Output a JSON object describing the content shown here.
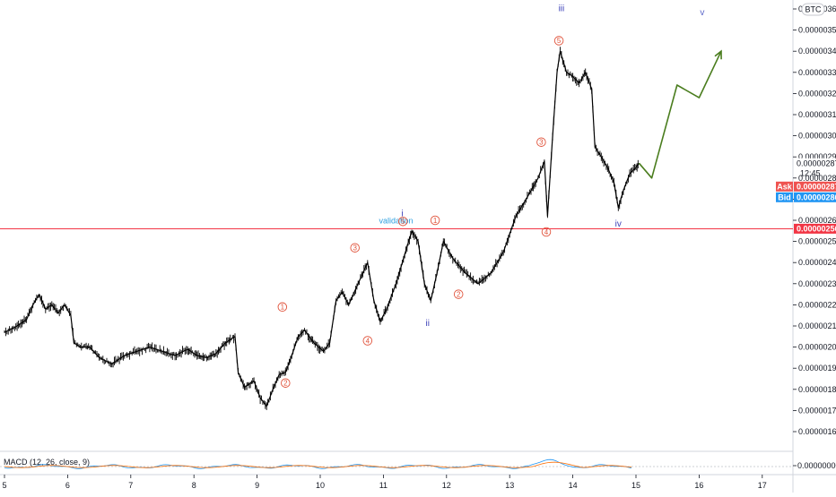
{
  "currency_badge": "BTC",
  "price_axis": {
    "ticks": [
      "0.00000360",
      "0.00000350",
      "0.00000340",
      "0.00000330",
      "0.00000320",
      "0.00000310",
      "0.00000300",
      "0.00000290",
      "0.00000280",
      "0.00000270",
      "0.00000260",
      "0.00000250",
      "0.00000240",
      "0.00000230",
      "0.00000220",
      "0.00000210",
      "0.00000200",
      "0.00000190",
      "0.00000180",
      "0.00000170",
      "0.00000160"
    ],
    "tick_values": [
      3.6,
      3.5,
      3.4,
      3.3,
      3.2,
      3.1,
      3.0,
      2.9,
      2.8,
      2.7,
      2.6,
      2.5,
      2.4,
      2.3,
      2.2,
      2.1,
      2.0,
      1.9,
      1.8,
      1.7,
      1.6
    ],
    "last_price": "0.00000287",
    "last_price_value": 2.87,
    "countdown": "12:45",
    "ask_label": "Ask",
    "ask_price": "0.00000287",
    "bid_label": "Bid",
    "bid_price": "0.00000286",
    "level_price": "0.00000256",
    "level_value": 2.56,
    "colors": {
      "last": "#131722",
      "ask": "#ef5350",
      "bid": "#2196f3",
      "level": "#f23645"
    }
  },
  "time_axis": {
    "labels": [
      "5",
      "6",
      "7",
      "8",
      "9",
      "10",
      "11",
      "12",
      "13",
      "14",
      "15",
      "16",
      "17"
    ]
  },
  "indicator": {
    "label": "MACD (12, 26, close, 9)",
    "zero_label": "0.00000000"
  },
  "chart_data": {
    "type": "line",
    "title": "",
    "xlabel": "",
    "ylabel": "",
    "units_note": "price in BTC x 1e-6",
    "x_range": [
      5,
      17.5
    ],
    "ylim": [
      1.55,
      3.62
    ],
    "grid": false,
    "series": [
      {
        "name": "",
        "color": "#000000",
        "points": [
          [
            5.0,
            2.07
          ],
          [
            5.2,
            2.1
          ],
          [
            5.35,
            2.13
          ],
          [
            5.45,
            2.2
          ],
          [
            5.55,
            2.25
          ],
          [
            5.65,
            2.18
          ],
          [
            5.75,
            2.2
          ],
          [
            5.85,
            2.16
          ],
          [
            5.95,
            2.2
          ],
          [
            6.05,
            2.15
          ],
          [
            6.1,
            2.02
          ],
          [
            6.2,
            2.0
          ],
          [
            6.35,
            2.0
          ],
          [
            6.5,
            1.95
          ],
          [
            6.7,
            1.92
          ],
          [
            6.9,
            1.96
          ],
          [
            7.1,
            1.98
          ],
          [
            7.3,
            2.0
          ],
          [
            7.5,
            1.98
          ],
          [
            7.7,
            1.96
          ],
          [
            7.9,
            1.99
          ],
          [
            8.05,
            1.96
          ],
          [
            8.2,
            1.95
          ],
          [
            8.35,
            1.97
          ],
          [
            8.5,
            2.02
          ],
          [
            8.65,
            2.05
          ],
          [
            8.7,
            1.88
          ],
          [
            8.8,
            1.81
          ],
          [
            8.95,
            1.84
          ],
          [
            9.05,
            1.76
          ],
          [
            9.15,
            1.72
          ],
          [
            9.25,
            1.8
          ],
          [
            9.35,
            1.87
          ],
          [
            9.45,
            1.88
          ],
          [
            9.55,
            1.96
          ],
          [
            9.65,
            2.05
          ],
          [
            9.75,
            2.08
          ],
          [
            9.9,
            2.02
          ],
          [
            10.05,
            1.98
          ],
          [
            10.15,
            2.02
          ],
          [
            10.25,
            2.22
          ],
          [
            10.35,
            2.26
          ],
          [
            10.45,
            2.2
          ],
          [
            10.6,
            2.3
          ],
          [
            10.75,
            2.4
          ],
          [
            10.85,
            2.22
          ],
          [
            10.95,
            2.12
          ],
          [
            11.05,
            2.18
          ],
          [
            11.2,
            2.3
          ],
          [
            11.3,
            2.4
          ],
          [
            11.45,
            2.55
          ],
          [
            11.55,
            2.5
          ],
          [
            11.65,
            2.3
          ],
          [
            11.75,
            2.22
          ],
          [
            11.85,
            2.35
          ],
          [
            11.95,
            2.5
          ],
          [
            12.1,
            2.42
          ],
          [
            12.3,
            2.35
          ],
          [
            12.5,
            2.3
          ],
          [
            12.7,
            2.35
          ],
          [
            12.9,
            2.45
          ],
          [
            13.1,
            2.62
          ],
          [
            13.3,
            2.72
          ],
          [
            13.45,
            2.8
          ],
          [
            13.55,
            2.88
          ],
          [
            13.6,
            2.62
          ],
          [
            13.68,
            3.0
          ],
          [
            13.75,
            3.3
          ],
          [
            13.8,
            3.4
          ],
          [
            13.9,
            3.3
          ],
          [
            14.0,
            3.28
          ],
          [
            14.1,
            3.25
          ],
          [
            14.2,
            3.3
          ],
          [
            14.3,
            3.22
          ],
          [
            14.35,
            2.95
          ],
          [
            14.45,
            2.9
          ],
          [
            14.55,
            2.85
          ],
          [
            14.65,
            2.78
          ],
          [
            14.72,
            2.66
          ],
          [
            14.8,
            2.74
          ],
          [
            14.9,
            2.82
          ],
          [
            15.0,
            2.85
          ],
          [
            15.05,
            2.87
          ]
        ]
      },
      {
        "name": "",
        "color": "#4a7d1e",
        "points": [
          [
            15.05,
            2.87
          ],
          [
            15.25,
            2.8
          ],
          [
            15.65,
            3.24
          ],
          [
            16.0,
            3.18
          ],
          [
            16.35,
            3.4
          ]
        ]
      }
    ],
    "wave_labels": [
      {
        "text": "i",
        "x": 11.3,
        "y": 2.62,
        "style": "roman"
      },
      {
        "text": "ii",
        "x": 11.7,
        "y": 2.1,
        "style": "roman"
      },
      {
        "text": "iii",
        "x": 13.82,
        "y": 3.59,
        "style": "roman"
      },
      {
        "text": "iv",
        "x": 14.72,
        "y": 2.57,
        "style": "roman"
      },
      {
        "text": "v",
        "x": 16.05,
        "y": 3.57,
        "style": "roman-light"
      },
      {
        "text": "validation",
        "x": 11.2,
        "y": 2.585,
        "style": "note"
      },
      {
        "text": "1",
        "x": 9.4,
        "y": 2.19,
        "style": "circle"
      },
      {
        "text": "2",
        "x": 9.45,
        "y": 1.83,
        "style": "circle"
      },
      {
        "text": "3",
        "x": 10.55,
        "y": 2.47,
        "style": "circle"
      },
      {
        "text": "4",
        "x": 10.75,
        "y": 2.03,
        "style": "circle"
      },
      {
        "text": "5",
        "x": 11.31,
        "y": 2.595,
        "style": "circle"
      },
      {
        "text": "1",
        "x": 11.82,
        "y": 2.6,
        "style": "circle"
      },
      {
        "text": "2",
        "x": 12.19,
        "y": 2.25,
        "style": "circle"
      },
      {
        "text": "3",
        "x": 13.5,
        "y": 2.97,
        "style": "circle"
      },
      {
        "text": "4",
        "x": 13.58,
        "y": 2.545,
        "style": "circle"
      },
      {
        "text": "5",
        "x": 13.78,
        "y": 3.45,
        "style": "circle"
      }
    ],
    "horizontal_level": 2.56
  }
}
